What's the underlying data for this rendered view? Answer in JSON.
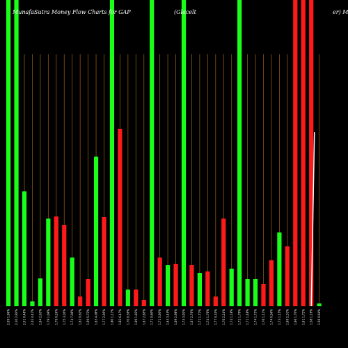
{
  "chart_data": {
    "type": "bar",
    "title_left": "MunafaSutra  Money Flow  Charts for GAP",
    "title_mid": "(Glacelt",
    "title_right": "er) Mu",
    "ylim": [
      0,
      440
    ],
    "grid": true,
    "colors": {
      "up": "#19ff19",
      "down": "#ff1a1a",
      "grid": "#8a5a14",
      "text": "#ffffff",
      "background": "#000000"
    },
    "bars": [
      {
        "value": 440,
        "color": "up",
        "label": "2.09 1.96%"
      },
      {
        "value": 440,
        "color": "up",
        "label": "2.20 2.83%"
      },
      {
        "value": 165,
        "color": "up",
        "label": "2.01 0.48%"
      },
      {
        "value": 7,
        "color": "up",
        "label": "2.02 4.41%"
      },
      {
        "value": 40,
        "color": "up",
        "label": "1.94 2.63%"
      },
      {
        "value": 126,
        "color": "up",
        "label": "1.79 1.69%"
      },
      {
        "value": 129,
        "color": "down",
        "label": "1.79 0.26%"
      },
      {
        "value": 117,
        "color": "down",
        "label": "1.75 3.05%"
      },
      {
        "value": 70,
        "color": "up",
        "label": "1.74 7.06%"
      },
      {
        "value": 14,
        "color": "down",
        "label": "1.62 0.62%"
      },
      {
        "value": 39,
        "color": "down",
        "label": "1.59 5.73%"
      },
      {
        "value": 215,
        "color": "up",
        "label": "1.63 4.06%"
      },
      {
        "value": 128,
        "color": "down",
        "label": "1.77 2.95%"
      },
      {
        "value": 440,
        "color": "up",
        "label": "1.80 1.11%"
      },
      {
        "value": 255,
        "color": "down",
        "label": "1.82 6.47%"
      },
      {
        "value": 24,
        "color": "up",
        "label": "1.70 0.59%"
      },
      {
        "value": 24,
        "color": "down",
        "label": "1.69 1.83%"
      },
      {
        "value": 9,
        "color": "down",
        "label": "1.67 2.85%"
      },
      {
        "value": 440,
        "color": "up",
        "label": "1.71 0.60%"
      },
      {
        "value": 70,
        "color": "down",
        "label": "1.71 5.93%"
      },
      {
        "value": 59,
        "color": "up",
        "label": "1.63 3.44%"
      },
      {
        "value": 61,
        "color": "down",
        "label": "1.69 2.98%"
      },
      {
        "value": 440,
        "color": "up",
        "label": "1.74 3.92%"
      },
      {
        "value": 59,
        "color": "down",
        "label": "1.67 2.76%"
      },
      {
        "value": 48,
        "color": "up",
        "label": "1.71 1.71%"
      },
      {
        "value": 50,
        "color": "down",
        "label": "1.74 1.76%"
      },
      {
        "value": 14,
        "color": "down",
        "label": "1.77 0.33%"
      },
      {
        "value": 126,
        "color": "down",
        "label": "1.76 2.24%"
      },
      {
        "value": 54,
        "color": "up",
        "label": "1.74 1.18%"
      },
      {
        "value": 440,
        "color": "up",
        "label": "1.72 1.79%"
      },
      {
        "value": 39,
        "color": "up",
        "label": "1.71 1.48%"
      },
      {
        "value": 39,
        "color": "up",
        "label": "1.74 1.73%"
      },
      {
        "value": 32,
        "color": "down",
        "label": "1.76 1.11%"
      },
      {
        "value": 66,
        "color": "down",
        "label": "1.74 0.56%"
      },
      {
        "value": 106,
        "color": "up",
        "label": "1.73 1.15%"
      },
      {
        "value": 86,
        "color": "down",
        "label": "1.69 2.31%"
      },
      {
        "value": 440,
        "color": "down",
        "label": "1.66 1.70%"
      },
      {
        "value": 440,
        "color": "down",
        "label": "1.61 1.72%"
      },
      {
        "value": 440,
        "color": "down",
        "label": "1.58 1.19%"
      },
      {
        "value": 4,
        "color": "up",
        "label": "1.56 0.64%"
      }
    ],
    "trend_line": [
      {
        "bar": 38,
        "value": 0
      },
      {
        "bar": 38.4,
        "value": 250
      }
    ]
  }
}
